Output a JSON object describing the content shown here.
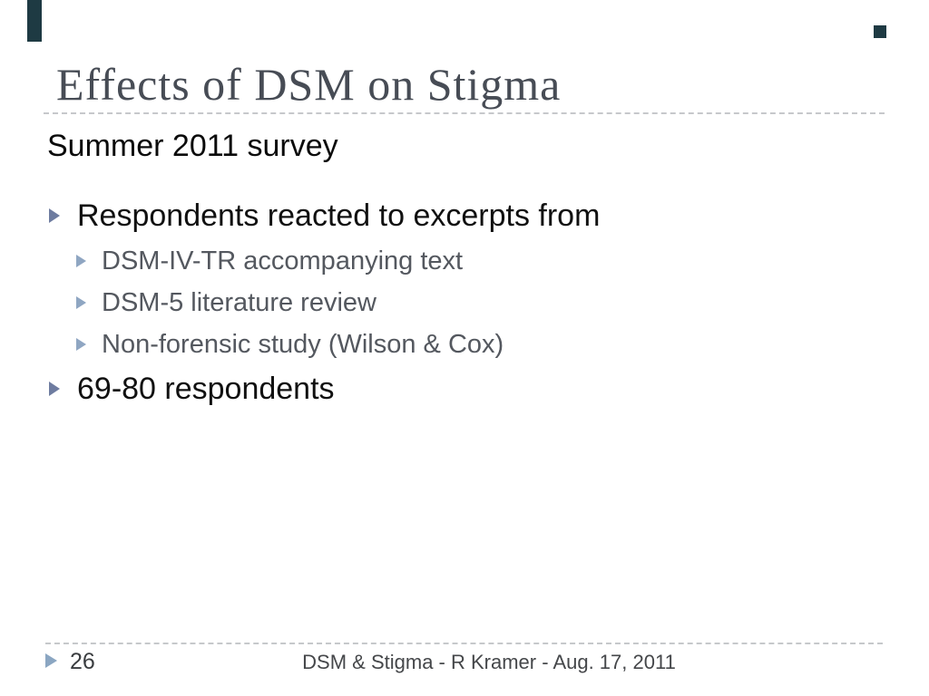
{
  "slide": {
    "title": "Effects of DSM on Stigma",
    "subtitle": "Summer 2011 survey",
    "bullets": [
      {
        "level": 1,
        "text": "Respondents reacted to excerpts from"
      },
      {
        "level": 2,
        "text": "DSM-IV-TR accompanying text"
      },
      {
        "level": 2,
        "text": "DSM-5 literature review"
      },
      {
        "level": 2,
        "text": "Non-forensic study (Wilson & Cox)"
      },
      {
        "level": 1,
        "text": "69-80 respondents"
      }
    ],
    "footer": {
      "page_number": "26",
      "text": "DSM & Stigma - R Kramer - Aug. 17, 2011"
    },
    "colors": {
      "accent_dark": "#1e3a43",
      "title_text": "#474c55",
      "body_text": "#111111",
      "secondary_text": "#54585f",
      "bullet_level1": "#6e7ca0",
      "bullet_level2": "#8fa6c2",
      "footer_triangle": "#8ba6c2",
      "dotted_rule": "#c6c8cb"
    }
  }
}
